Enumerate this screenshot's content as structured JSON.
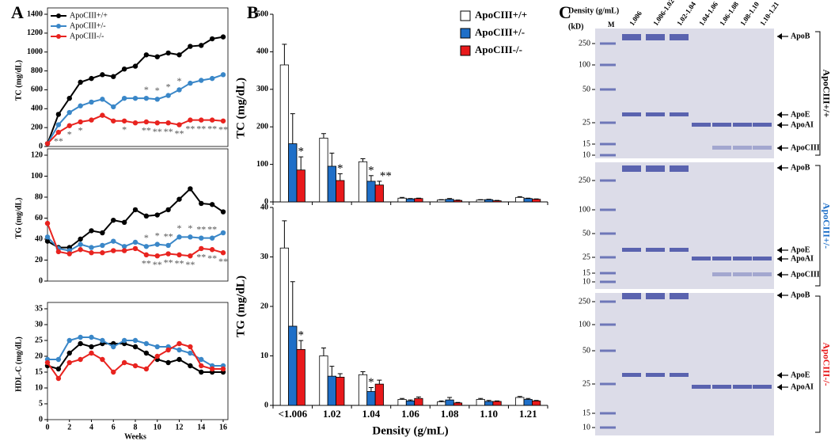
{
  "panels": [
    "A",
    "B",
    "C"
  ],
  "chart_data": [
    {
      "type": "line",
      "ylabel": "TC (mg/dL)",
      "x": [
        0,
        1,
        2,
        3,
        4,
        5,
        6,
        7,
        8,
        9,
        10,
        11,
        12,
        13,
        14,
        15,
        16
      ],
      "xlim": [
        0,
        16
      ],
      "ylim": [
        0,
        1400
      ],
      "yticks": [
        0,
        200,
        400,
        600,
        800,
        1000,
        1200,
        1400
      ],
      "legend": "upper left",
      "series": [
        {
          "name": "ApoCIII+/+",
          "color": "#000000",
          "values": [
            30,
            340,
            510,
            680,
            720,
            760,
            740,
            820,
            850,
            970,
            950,
            990,
            970,
            1060,
            1070,
            1140,
            1160
          ]
        },
        {
          "name": "ApoCIII+/-",
          "color": "#3a87c8",
          "values": [
            30,
            230,
            360,
            430,
            470,
            500,
            420,
            510,
            510,
            510,
            500,
            540,
            600,
            670,
            700,
            720,
            760
          ]
        },
        {
          "name": "ApoCIII-/-",
          "color": "#e8231f",
          "values": [
            30,
            150,
            220,
            260,
            280,
            330,
            270,
            270,
            250,
            260,
            250,
            250,
            230,
            280,
            280,
            280,
            270
          ]
        }
      ],
      "annotations": [
        {
          "series": 1,
          "x": 9,
          "text": "*"
        },
        {
          "series": 1,
          "x": 10,
          "text": "*"
        },
        {
          "series": 1,
          "x": 11,
          "text": "*"
        },
        {
          "series": 1,
          "x": 12,
          "text": "*"
        },
        {
          "series": 2,
          "x": 1,
          "text": "**"
        },
        {
          "series": 2,
          "x": 2,
          "text": "*"
        },
        {
          "series": 2,
          "x": 3,
          "text": "*"
        },
        {
          "series": 2,
          "x": 7,
          "text": "*"
        },
        {
          "series": 2,
          "x": 9,
          "text": "**"
        },
        {
          "series": 2,
          "x": 10,
          "text": "**"
        },
        {
          "series": 2,
          "x": 11,
          "text": "**"
        },
        {
          "series": 2,
          "x": 12,
          "text": "**"
        },
        {
          "series": 2,
          "x": 13,
          "text": "**"
        },
        {
          "series": 2,
          "x": 14,
          "text": "**"
        },
        {
          "series": 2,
          "x": 15,
          "text": "**"
        },
        {
          "series": 2,
          "x": 16,
          "text": "**"
        }
      ]
    },
    {
      "type": "line",
      "ylabel": "TG (mg/dL)",
      "x": [
        0,
        1,
        2,
        3,
        4,
        5,
        6,
        7,
        8,
        9,
        10,
        11,
        12,
        13,
        14,
        15,
        16
      ],
      "xlim": [
        0,
        16
      ],
      "ylim": [
        0,
        120
      ],
      "yticks": [
        0,
        20,
        40,
        60,
        80,
        100,
        120
      ],
      "series": [
        {
          "color": "#000000",
          "values": [
            38,
            32,
            32,
            40,
            48,
            46,
            58,
            56,
            68,
            62,
            63,
            68,
            78,
            88,
            74,
            73,
            66
          ]
        },
        {
          "color": "#3a87c8",
          "values": [
            42,
            31,
            29,
            35,
            32,
            34,
            38,
            33,
            37,
            33,
            35,
            34,
            42,
            42,
            41,
            41,
            46
          ]
        },
        {
          "color": "#e8231f",
          "values": [
            55,
            28,
            26,
            30,
            27,
            27,
            29,
            29,
            31,
            25,
            24,
            26,
            25,
            24,
            31,
            30,
            27
          ]
        }
      ],
      "annotations": [
        {
          "series": 1,
          "x": 9,
          "text": "*"
        },
        {
          "series": 1,
          "x": 10,
          "text": "*"
        },
        {
          "series": 1,
          "x": 11,
          "text": "**"
        },
        {
          "series": 1,
          "x": 12,
          "text": "*"
        },
        {
          "series": 1,
          "x": 13,
          "text": "*"
        },
        {
          "series": 1,
          "x": 14,
          "text": "**"
        },
        {
          "series": 1,
          "x": 15,
          "text": "**"
        },
        {
          "series": 2,
          "x": 9,
          "text": "**"
        },
        {
          "series": 2,
          "x": 10,
          "text": "**"
        },
        {
          "series": 2,
          "x": 11,
          "text": "**"
        },
        {
          "series": 2,
          "x": 12,
          "text": "**"
        },
        {
          "series": 2,
          "x": 13,
          "text": "**"
        },
        {
          "series": 2,
          "x": 14,
          "text": "**"
        },
        {
          "series": 2,
          "x": 15,
          "text": "**"
        },
        {
          "series": 2,
          "x": 16,
          "text": "**"
        }
      ]
    },
    {
      "type": "line",
      "ylabel": "HDL-C (mg/dL)",
      "xlabel": "Weeks",
      "x": [
        0,
        1,
        2,
        3,
        4,
        5,
        6,
        7,
        8,
        9,
        10,
        11,
        12,
        13,
        14,
        15,
        16
      ],
      "xlim": [
        0,
        16
      ],
      "xticks": [
        0,
        2,
        4,
        6,
        8,
        10,
        12,
        14,
        16
      ],
      "ylim": [
        0,
        35
      ],
      "yticks": [
        0,
        5,
        10,
        15,
        20,
        25,
        30,
        35
      ],
      "series": [
        {
          "color": "#000000",
          "values": [
            17,
            16,
            21,
            24,
            23,
            24,
            24,
            24,
            23,
            21,
            19,
            18,
            19,
            17,
            15,
            15,
            15
          ]
        },
        {
          "color": "#3a87c8",
          "values": [
            19,
            19,
            25,
            26,
            26,
            25,
            23,
            25,
            25,
            24,
            23,
            23,
            22,
            21,
            19,
            17,
            17
          ]
        },
        {
          "color": "#e8231f",
          "values": [
            18,
            13,
            18,
            19,
            21,
            19,
            15,
            18,
            17,
            16,
            20,
            22,
            24,
            23,
            17,
            16,
            16
          ]
        }
      ]
    },
    {
      "type": "bar",
      "ylabel": "TC (mg/dL)",
      "ylim": [
        0,
        500
      ],
      "yticks": [
        0,
        100,
        200,
        300,
        400,
        500
      ],
      "legend": "upper right",
      "series": [
        {
          "name": "ApoCIII+/+",
          "color": "#ffffff",
          "values": [
            365,
            170,
            107,
            10,
            5,
            5,
            12
          ],
          "errors": [
            55,
            12,
            8,
            2,
            1,
            1,
            2
          ]
        },
        {
          "name": "ApoCIII+/-",
          "color": "#1e6fc8",
          "values": [
            155,
            95,
            55,
            8,
            7,
            6,
            9
          ],
          "errors": [
            80,
            35,
            15,
            1,
            2,
            1,
            1
          ]
        },
        {
          "name": "ApoCIII-/-",
          "color": "#e8191b",
          "values": [
            85,
            57,
            45,
            9,
            4,
            3,
            7
          ],
          "errors": [
            35,
            18,
            10,
            1,
            1,
            1,
            1
          ]
        }
      ],
      "annotations": [
        {
          "category": 0,
          "series": 2,
          "text": "*"
        },
        {
          "category": 1,
          "series": 2,
          "text": "*"
        },
        {
          "category": 2,
          "series": 1,
          "text": "*"
        },
        {
          "category": 2,
          "series": 2,
          "text": "**"
        }
      ]
    },
    {
      "type": "bar",
      "ylabel": "TG (mg/dL)",
      "xlabel": "Density (g/mL)",
      "categories": [
        "<1.006",
        "1.02",
        "1.04",
        "1.06",
        "1.08",
        "1.10",
        "1.21"
      ],
      "ylim": [
        0,
        40
      ],
      "yticks": [
        0,
        10,
        20,
        30,
        40
      ],
      "series": [
        {
          "color": "#ffffff",
          "values": [
            31.8,
            10,
            6.2,
            1.2,
            0.7,
            1.2,
            1.6
          ],
          "errors": [
            5.5,
            1.6,
            0.6,
            0.2,
            0.2,
            0.2,
            0.2
          ]
        },
        {
          "color": "#1e6fc8",
          "values": [
            16,
            5.9,
            2.8,
            0.9,
            1.1,
            0.8,
            1.2
          ],
          "errors": [
            9,
            2,
            0.8,
            0.2,
            0.5,
            0.2,
            0.2
          ]
        },
        {
          "color": "#e8191b",
          "values": [
            11.3,
            5.7,
            4.3,
            1.4,
            0.5,
            0.8,
            0.9
          ],
          "errors": [
            1.8,
            0.7,
            0.8,
            0.3,
            0.1,
            0.1,
            0.1
          ]
        }
      ],
      "annotations": [
        {
          "category": 0,
          "series": 2,
          "text": "*"
        },
        {
          "category": 2,
          "series": 1,
          "text": "*"
        }
      ]
    }
  ],
  "gel": {
    "header": "Density (g/mL)",
    "unit": "(kD)",
    "lanes": [
      "M",
      "1.006",
      "1.006-1.02",
      "1.02-1.04",
      "1.04-1.06",
      "1.06-1.08",
      "1.08-1.10",
      "1.10-1.21"
    ],
    "panels": [
      {
        "genotype": "ApoCIII+/+",
        "color": "#000000",
        "markers": [
          250,
          100,
          50,
          25,
          15,
          10
        ],
        "bands": [
          "ApoB",
          "ApoE",
          "ApoAI",
          "ApoCIII"
        ]
      },
      {
        "genotype": "ApoCIII+/-",
        "color": "#1e6fc8",
        "markers": [
          250,
          100,
          50,
          25,
          15,
          10
        ],
        "bands": [
          "ApoB",
          "ApoE",
          "ApoAI",
          "ApoCIII"
        ]
      },
      {
        "genotype": "ApoCIII-/-",
        "color": "#e8191b",
        "markers": [
          250,
          100,
          50,
          25,
          15,
          10
        ],
        "bands": [
          "ApoB",
          "ApoE",
          "ApoAI"
        ]
      }
    ]
  }
}
